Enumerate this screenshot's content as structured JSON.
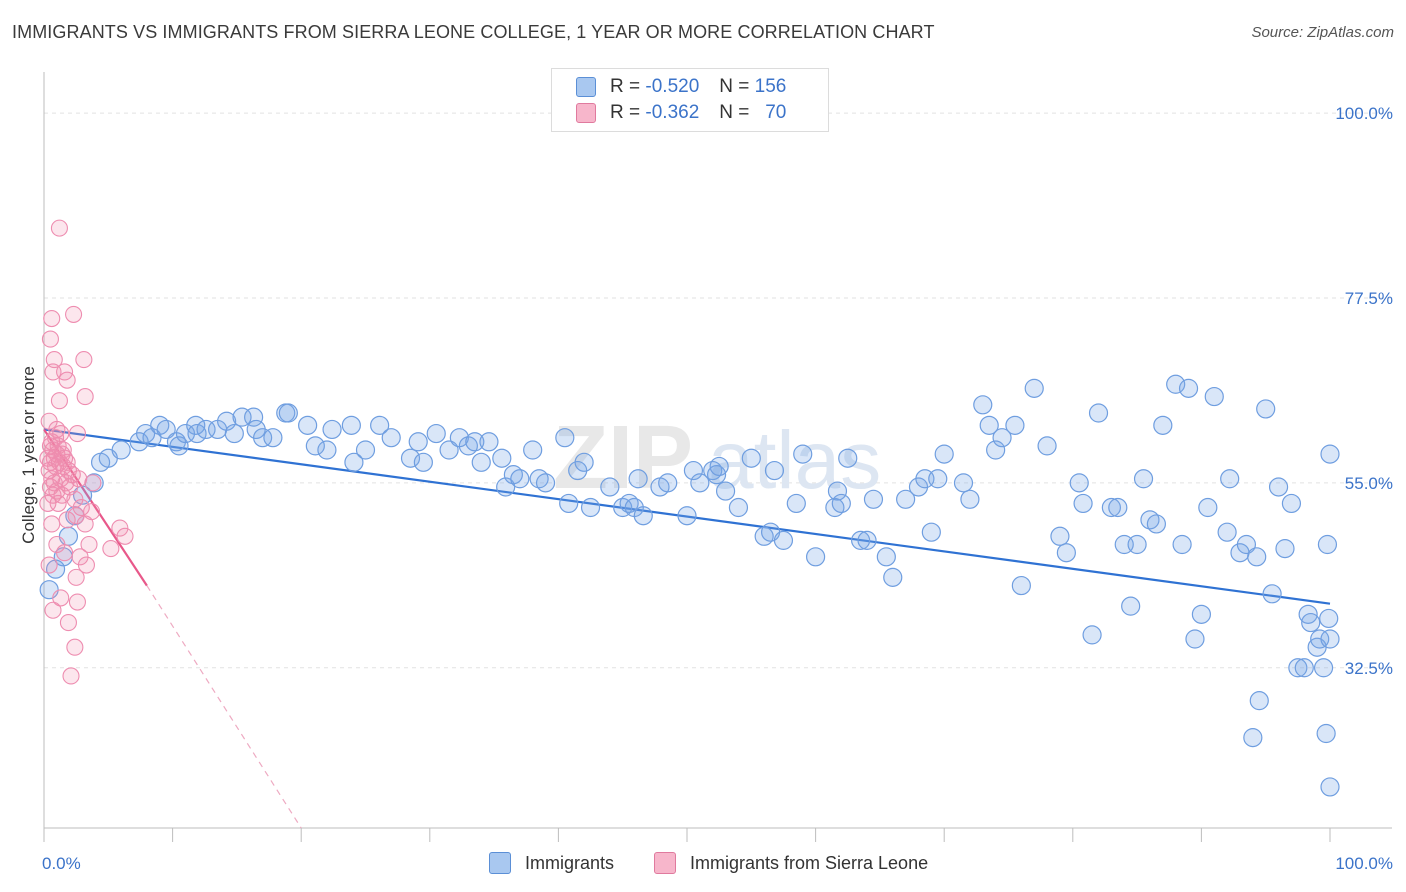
{
  "header": {
    "title": "IMMIGRANTS VS IMMIGRANTS FROM SIERRA LEONE COLLEGE, 1 YEAR OR MORE CORRELATION CHART",
    "source": "Source: ZipAtlas.com"
  },
  "watermark": {
    "zip": "ZIP",
    "atlas": "atlas"
  },
  "legend": {
    "rows": [
      {
        "r_label": "R =",
        "r_value": "-0.520",
        "n_label": "N =",
        "n_value": "156",
        "color": "#a9c8f0",
        "stroke": "#5b8fd6"
      },
      {
        "r_label": "R =",
        "r_value": "-0.362",
        "n_label": "N =",
        "n_value": "70",
        "color": "#f7b6cb",
        "stroke": "#e07a9e"
      }
    ]
  },
  "bottom_legend": {
    "immigrants": "Immigrants",
    "sierra_leone": "Immigrants from Sierra Leone"
  },
  "colors": {
    "blue_fill": "rgba(120,165,230,0.28)",
    "blue_stroke": "#6f9ee0",
    "blue_line": "#2f72d3",
    "pink_fill": "rgba(240,140,175,0.22)",
    "pink_stroke": "#ee8db0",
    "pink_line": "#e8588a",
    "grid": "#e2e2e2",
    "tick_text": "#3b73c9"
  },
  "chart_data": {
    "type": "scatter",
    "title": "IMMIGRANTS VS IMMIGRANTS FROM SIERRA LEONE COLLEGE, 1 YEAR OR MORE CORRELATION CHART",
    "xlabel": "",
    "ylabel": "College, 1 year or more",
    "xlim": [
      0,
      100
    ],
    "ylim": [
      13,
      105
    ],
    "x_tick_labels": [
      "0.0%",
      "100.0%"
    ],
    "y_ticks": [
      32.5,
      55.0,
      77.5,
      100.0
    ],
    "y_tick_labels": [
      "32.5%",
      "55.0%",
      "77.5%",
      "100.0%"
    ],
    "grid": true,
    "legend_position": "top-center",
    "series": [
      {
        "name": "Immigrants",
        "r": -0.52,
        "n": 156,
        "trend": {
          "x": [
            0,
            100
          ],
          "y": [
            61.5,
            40.3
          ]
        },
        "points": [
          [
            0.4,
            42
          ],
          [
            0.9,
            44.5
          ],
          [
            1.5,
            46
          ],
          [
            1.9,
            48.5
          ],
          [
            2.4,
            51
          ],
          [
            3.0,
            53.5
          ],
          [
            3.9,
            55
          ],
          [
            4.4,
            57.5
          ],
          [
            5.0,
            58
          ],
          [
            6.0,
            59
          ],
          [
            7.4,
            60
          ],
          [
            7.9,
            61
          ],
          [
            8.4,
            60.5
          ],
          [
            9.0,
            62
          ],
          [
            9.5,
            61.5
          ],
          [
            10.3,
            60
          ],
          [
            10.5,
            59.5
          ],
          [
            11.0,
            61
          ],
          [
            11.8,
            62
          ],
          [
            11.9,
            61
          ],
          [
            12.6,
            61.5
          ],
          [
            13.5,
            61.5
          ],
          [
            14.2,
            62.5
          ],
          [
            14.8,
            61
          ],
          [
            15.4,
            63
          ],
          [
            16.3,
            63
          ],
          [
            16.5,
            61.5
          ],
          [
            17.0,
            60.5
          ],
          [
            17.8,
            60.5
          ],
          [
            18.8,
            63.5
          ],
          [
            19.0,
            63.5
          ],
          [
            20.5,
            62
          ],
          [
            21.1,
            59.5
          ],
          [
            22.0,
            59
          ],
          [
            22.4,
            61.5
          ],
          [
            23.9,
            62
          ],
          [
            24.1,
            57.5
          ],
          [
            25.0,
            59
          ],
          [
            26.1,
            62
          ],
          [
            27.0,
            60.5
          ],
          [
            28.5,
            58
          ],
          [
            29.1,
            60
          ],
          [
            29.5,
            57.5
          ],
          [
            30.5,
            61
          ],
          [
            31.5,
            59
          ],
          [
            32.3,
            60.5
          ],
          [
            33.0,
            59.5
          ],
          [
            33.5,
            60
          ],
          [
            34.0,
            57.5
          ],
          [
            34.6,
            60
          ],
          [
            35.6,
            58
          ],
          [
            35.9,
            54.5
          ],
          [
            36.5,
            56
          ],
          [
            37.0,
            55.5
          ],
          [
            38.0,
            59
          ],
          [
            38.5,
            55.5
          ],
          [
            39.0,
            55
          ],
          [
            40.5,
            60.5
          ],
          [
            40.8,
            52.5
          ],
          [
            41.5,
            56.5
          ],
          [
            42.0,
            57.5
          ],
          [
            42.5,
            52
          ],
          [
            44.0,
            54.5
          ],
          [
            45.0,
            52
          ],
          [
            45.5,
            52.5
          ],
          [
            45.9,
            52
          ],
          [
            46.2,
            55.5
          ],
          [
            46.6,
            51
          ],
          [
            47.9,
            54.5
          ],
          [
            48.5,
            55
          ],
          [
            50.0,
            51
          ],
          [
            50.5,
            56.5
          ],
          [
            51.0,
            55
          ],
          [
            52.0,
            56.5
          ],
          [
            52.3,
            56
          ],
          [
            52.5,
            57
          ],
          [
            53.0,
            54
          ],
          [
            54.0,
            52
          ],
          [
            55.0,
            58
          ],
          [
            56.0,
            48.5
          ],
          [
            56.5,
            49
          ],
          [
            56.8,
            56.5
          ],
          [
            57.5,
            48
          ],
          [
            58.5,
            52.5
          ],
          [
            59.0,
            58.5
          ],
          [
            60.0,
            46
          ],
          [
            61.5,
            52
          ],
          [
            61.7,
            54
          ],
          [
            62.0,
            52.5
          ],
          [
            62.5,
            58
          ],
          [
            63.5,
            48
          ],
          [
            64.0,
            48
          ],
          [
            64.5,
            53
          ],
          [
            65.5,
            46
          ],
          [
            66.0,
            43.5
          ],
          [
            67.0,
            53
          ],
          [
            68.0,
            54.5
          ],
          [
            68.5,
            55.5
          ],
          [
            69.0,
            49
          ],
          [
            69.5,
            55.5
          ],
          [
            70.0,
            58.5
          ],
          [
            71.5,
            55
          ],
          [
            72.0,
            53
          ],
          [
            73.0,
            64.5
          ],
          [
            73.5,
            62
          ],
          [
            74.0,
            59
          ],
          [
            74.5,
            60.5
          ],
          [
            75.5,
            62
          ],
          [
            76.0,
            42.5
          ],
          [
            77.0,
            66.5
          ],
          [
            78.0,
            59.5
          ],
          [
            79.0,
            48.5
          ],
          [
            79.5,
            46.5
          ],
          [
            80.5,
            55
          ],
          [
            80.8,
            52.5
          ],
          [
            81.5,
            36.5
          ],
          [
            82.0,
            63.5
          ],
          [
            83.0,
            52
          ],
          [
            83.5,
            52
          ],
          [
            84.0,
            47.5
          ],
          [
            84.5,
            40
          ],
          [
            85.0,
            47.5
          ],
          [
            85.5,
            55.5
          ],
          [
            86.0,
            50.5
          ],
          [
            86.5,
            50
          ],
          [
            87.0,
            62
          ],
          [
            88.0,
            67
          ],
          [
            88.5,
            47.5
          ],
          [
            89.0,
            66.5
          ],
          [
            89.5,
            36
          ],
          [
            90.0,
            39
          ],
          [
            90.5,
            52
          ],
          [
            91.0,
            65.5
          ],
          [
            92.0,
            49
          ],
          [
            92.2,
            55.5
          ],
          [
            93.0,
            46.5
          ],
          [
            93.5,
            47.5
          ],
          [
            94.0,
            24
          ],
          [
            94.3,
            46
          ],
          [
            94.5,
            28.5
          ],
          [
            95.0,
            64
          ],
          [
            95.5,
            41.5
          ],
          [
            96.0,
            54.5
          ],
          [
            96.5,
            47
          ],
          [
            97.0,
            52.5
          ],
          [
            97.5,
            32.5
          ],
          [
            98.0,
            32.5
          ],
          [
            98.3,
            39
          ],
          [
            98.5,
            38
          ],
          [
            99.0,
            35
          ],
          [
            99.2,
            36
          ],
          [
            99.5,
            32.5
          ],
          [
            99.7,
            24.5
          ],
          [
            99.8,
            47.5
          ],
          [
            99.9,
            38.5
          ],
          [
            100.0,
            18
          ],
          [
            100.0,
            36
          ],
          [
            100.0,
            58.5
          ]
        ]
      },
      {
        "name": "Immigrants from Sierra Leone",
        "r": -0.362,
        "n": 70,
        "trend": {
          "x": [
            0,
            8.0
          ],
          "y": [
            61.5,
            42.5
          ]
        },
        "trend_dashed": {
          "x": [
            8.0,
            20.0
          ],
          "y": [
            42.5,
            13.0
          ]
        },
        "points": [
          [
            1.2,
            86
          ],
          [
            0.6,
            75
          ],
          [
            2.3,
            75.5
          ],
          [
            0.5,
            72.5
          ],
          [
            0.8,
            70
          ],
          [
            3.1,
            70
          ],
          [
            0.7,
            68.5
          ],
          [
            1.6,
            68.5
          ],
          [
            1.8,
            67.5
          ],
          [
            1.2,
            65
          ],
          [
            3.2,
            65.5
          ],
          [
            0.4,
            62.5
          ],
          [
            1.0,
            61.5
          ],
          [
            1.3,
            61
          ],
          [
            2.6,
            61
          ],
          [
            0.9,
            60.5
          ],
          [
            0.6,
            60
          ],
          [
            0.5,
            59.5
          ],
          [
            1.1,
            59.5
          ],
          [
            1.5,
            59
          ],
          [
            0.7,
            59
          ],
          [
            1.0,
            58.5
          ],
          [
            1.4,
            58.5
          ],
          [
            0.3,
            58
          ],
          [
            0.8,
            58
          ],
          [
            1.6,
            58
          ],
          [
            0.5,
            57.5
          ],
          [
            1.2,
            57.5
          ],
          [
            1.8,
            57.5
          ],
          [
            0.9,
            57
          ],
          [
            1.5,
            57
          ],
          [
            0.4,
            56.5
          ],
          [
            1.9,
            56.5
          ],
          [
            2.2,
            56
          ],
          [
            0.6,
            55.5
          ],
          [
            1.3,
            55.5
          ],
          [
            2.7,
            55.5
          ],
          [
            0.8,
            55
          ],
          [
            1.7,
            55
          ],
          [
            3.8,
            55
          ],
          [
            0.5,
            54.5
          ],
          [
            2.0,
            54.5
          ],
          [
            1.0,
            54
          ],
          [
            0.7,
            53.5
          ],
          [
            1.4,
            53.5
          ],
          [
            2.4,
            53
          ],
          [
            0.3,
            52.5
          ],
          [
            1.1,
            52.5
          ],
          [
            2.9,
            52
          ],
          [
            3.7,
            51.5
          ],
          [
            2.5,
            51
          ],
          [
            1.8,
            50.5
          ],
          [
            0.6,
            50
          ],
          [
            3.2,
            50
          ],
          [
            5.9,
            49.5
          ],
          [
            6.3,
            48.5
          ],
          [
            3.5,
            47.5
          ],
          [
            5.2,
            47
          ],
          [
            1.6,
            46.5
          ],
          [
            2.8,
            46
          ],
          [
            0.4,
            45
          ],
          [
            2.5,
            43.5
          ],
          [
            1.3,
            41
          ],
          [
            2.6,
            40.5
          ],
          [
            0.7,
            39.5
          ],
          [
            1.9,
            38
          ],
          [
            2.4,
            35
          ],
          [
            2.1,
            31.5
          ],
          [
            1.0,
            47.5
          ],
          [
            3.3,
            45
          ]
        ]
      }
    ]
  }
}
